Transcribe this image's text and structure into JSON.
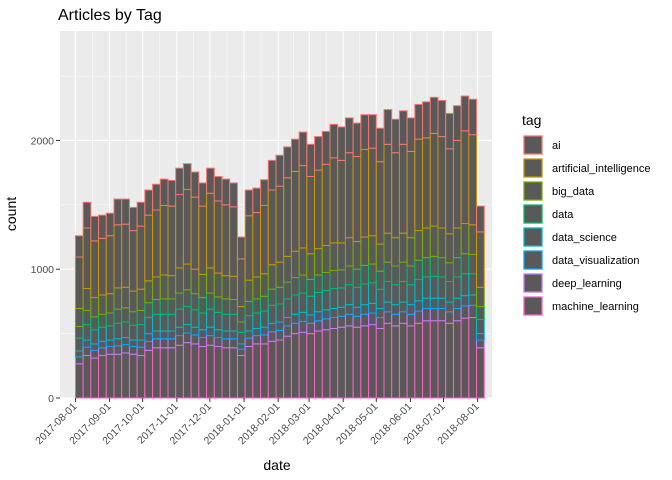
{
  "chart_data": {
    "type": "bar",
    "title": "Articles by Tag",
    "xlabel": "date",
    "ylabel": "count",
    "x_tick_labels": [
      "2017-08-01",
      "2017-09-01",
      "2017-10-01",
      "2017-11-01",
      "2017-12-01",
      "2018-01-01",
      "2018-02-01",
      "2018-03-01",
      "2018-04-01",
      "2018-05-01",
      "2018-06-01",
      "2018-07-01",
      "2018-08-01"
    ],
    "y_ticks": [
      0,
      1000,
      2000
    ],
    "ylim": [
      0,
      2850
    ],
    "bin_width_days": 7,
    "stacked": true,
    "legend": {
      "title": "tag",
      "position": "right"
    },
    "colors": {
      "panel_bg": "#EBEBEB",
      "grid": "#FFFFFF",
      "bar_fill": "#595959"
    },
    "categories": [
      "2017-08-01",
      "2017-08-08",
      "2017-08-15",
      "2017-08-22",
      "2017-08-29",
      "2017-09-05",
      "2017-09-12",
      "2017-09-19",
      "2017-09-26",
      "2017-10-03",
      "2017-10-10",
      "2017-10-17",
      "2017-10-24",
      "2017-10-31",
      "2017-11-07",
      "2017-11-14",
      "2017-11-21",
      "2017-11-28",
      "2017-12-05",
      "2017-12-12",
      "2017-12-19",
      "2017-12-26",
      "2018-01-02",
      "2018-01-09",
      "2018-01-16",
      "2018-01-23",
      "2018-01-30",
      "2018-02-06",
      "2018-02-13",
      "2018-02-20",
      "2018-02-27",
      "2018-03-06",
      "2018-03-13",
      "2018-03-20",
      "2018-03-27",
      "2018-04-03",
      "2018-04-10",
      "2018-04-17",
      "2018-04-24",
      "2018-05-01",
      "2018-05-08",
      "2018-05-15",
      "2018-05-22",
      "2018-05-29",
      "2018-06-05",
      "2018-06-12",
      "2018-06-19",
      "2018-06-26",
      "2018-07-03",
      "2018-07-10",
      "2018-07-17",
      "2018-07-24",
      "2018-07-31"
    ],
    "series": [
      {
        "name": "ai",
        "color": "#F8766D",
        "values": [
          165,
          200,
          190,
          180,
          175,
          200,
          195,
          180,
          185,
          195,
          200,
          205,
          200,
          205,
          200,
          195,
          180,
          195,
          190,
          200,
          185,
          170,
          200,
          190,
          200,
          230,
          240,
          240,
          250,
          260,
          250,
          260,
          255,
          260,
          260,
          270,
          260,
          270,
          260,
          260,
          270,
          260,
          260,
          260,
          270,
          280,
          280,
          280,
          275,
          270,
          270,
          275,
          200
        ]
      },
      {
        "name": "artificial_intelligence",
        "color": "#CD9600",
        "values": [
          400,
          470,
          440,
          440,
          450,
          490,
          490,
          470,
          490,
          510,
          520,
          540,
          540,
          570,
          580,
          560,
          530,
          580,
          560,
          550,
          540,
          370,
          500,
          500,
          530,
          580,
          590,
          610,
          620,
          640,
          600,
          610,
          630,
          660,
          640,
          660,
          660,
          680,
          680,
          640,
          690,
          660,
          690,
          670,
          710,
          700,
          720,
          710,
          660,
          680,
          720,
          700,
          430
        ]
      },
      {
        "name": "big_data",
        "color": "#7CAE00",
        "values": [
          140,
          170,
          150,
          150,
          150,
          165,
          160,
          160,
          165,
          170,
          175,
          185,
          180,
          195,
          200,
          190,
          180,
          195,
          185,
          180,
          180,
          120,
          165,
          170,
          175,
          190,
          195,
          200,
          205,
          210,
          200,
          205,
          210,
          215,
          210,
          220,
          215,
          220,
          220,
          210,
          225,
          220,
          225,
          220,
          230,
          230,
          235,
          230,
          225,
          230,
          235,
          230,
          150
        ]
      },
      {
        "name": "data",
        "color": "#00BE67",
        "values": [
          90,
          110,
          100,
          100,
          100,
          110,
          110,
          105,
          110,
          115,
          115,
          120,
          120,
          125,
          130,
          125,
          120,
          125,
          120,
          120,
          115,
          80,
          110,
          110,
          115,
          125,
          130,
          130,
          135,
          140,
          130,
          135,
          140,
          140,
          140,
          145,
          140,
          145,
          145,
          140,
          150,
          145,
          150,
          145,
          150,
          150,
          155,
          150,
          145,
          150,
          155,
          150,
          100
        ]
      },
      {
        "name": "data_science",
        "color": "#00BFC4",
        "values": [
          100,
          120,
          110,
          110,
          110,
          120,
          120,
          115,
          120,
          125,
          130,
          130,
          130,
          140,
          140,
          135,
          130,
          140,
          135,
          130,
          130,
          90,
          120,
          120,
          125,
          140,
          140,
          145,
          150,
          150,
          145,
          150,
          150,
          155,
          150,
          155,
          155,
          160,
          160,
          150,
          160,
          155,
          160,
          155,
          165,
          165,
          170,
          165,
          160,
          165,
          170,
          165,
          110
        ]
      },
      {
        "name": "data_visualization",
        "color": "#00A9FF",
        "values": [
          45,
          55,
          50,
          50,
          50,
          55,
          55,
          50,
          55,
          60,
          60,
          60,
          60,
          65,
          65,
          60,
          60,
          65,
          60,
          60,
          60,
          40,
          55,
          55,
          60,
          65,
          65,
          65,
          70,
          70,
          65,
          70,
          70,
          70,
          70,
          75,
          70,
          75,
          75,
          70,
          75,
          75,
          75,
          75,
          80,
          80,
          80,
          80,
          75,
          80,
          80,
          80,
          50
        ]
      },
      {
        "name": "deep_learning",
        "color": "#C77CFF",
        "values": [
          55,
          65,
          60,
          60,
          60,
          65,
          65,
          60,
          65,
          70,
          70,
          70,
          70,
          75,
          75,
          70,
          70,
          75,
          70,
          70,
          70,
          50,
          65,
          65,
          70,
          75,
          75,
          80,
          80,
          85,
          80,
          80,
          85,
          85,
          85,
          90,
          85,
          90,
          90,
          85,
          90,
          90,
          90,
          90,
          95,
          95,
          95,
          95,
          90,
          95,
          95,
          95,
          60
        ]
      },
      {
        "name": "machine_learning",
        "color": "#FF61C3",
        "values": [
          265,
          330,
          310,
          330,
          340,
          340,
          350,
          340,
          330,
          370,
          390,
          390,
          390,
          410,
          430,
          420,
          400,
          410,
          400,
          390,
          390,
          330,
          400,
          420,
          420,
          440,
          450,
          480,
          500,
          510,
          500,
          520,
          530,
          540,
          550,
          560,
          550,
          560,
          570,
          540,
          580,
          560,
          580,
          560,
          580,
          600,
          600,
          600,
          580,
          600,
          620,
          625,
          390
        ]
      }
    ]
  }
}
